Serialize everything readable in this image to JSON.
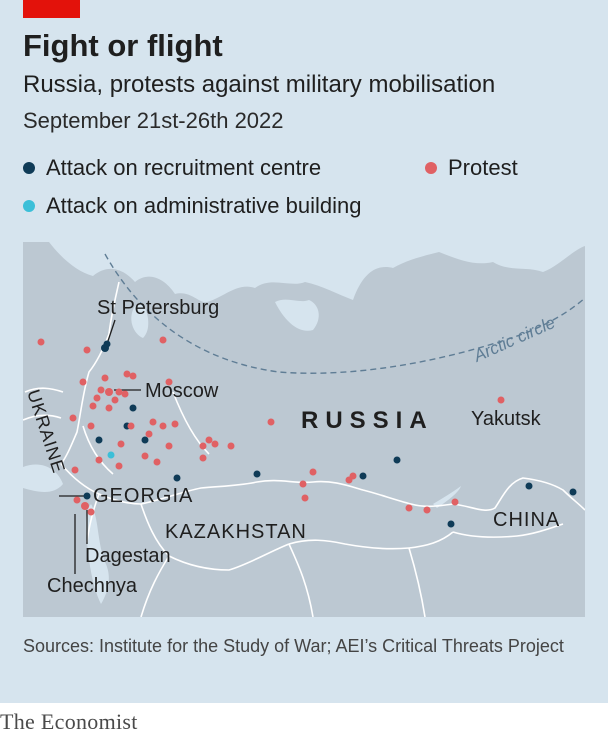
{
  "header": {
    "title": "Fight or flight",
    "subtitle": "Russia, protests against military mobilisation",
    "date": "September 21st-26th 2022"
  },
  "legend": [
    {
      "label": "Attack on recruitment centre",
      "color": "#0f3b57"
    },
    {
      "label": "Attack on administrative building",
      "color": "#3bbfd8"
    },
    {
      "label": "Protest",
      "color": "#e06164"
    }
  ],
  "map": {
    "labels": {
      "russia": "RUSSIA",
      "ukraine": "UKRAINE",
      "georgia": "GEORGIA",
      "kazakhstan": "KAZAKHSTAN",
      "china": "CHINA",
      "st_petersburg": "St Petersburg",
      "moscow": "Moscow",
      "yakutsk": "Yakutsk",
      "dagestan": "Dagestan",
      "chechnya": "Chechnya",
      "arctic_circle": "Arctic circle"
    },
    "colors": {
      "land": "#bcc8d2",
      "water": "#d6e4ee",
      "border": "#ffffff"
    }
  },
  "footer": {
    "sources": "Sources: Institute for the Study of War; AEI’s Critical Threats Project",
    "brand": "The Economist"
  }
}
